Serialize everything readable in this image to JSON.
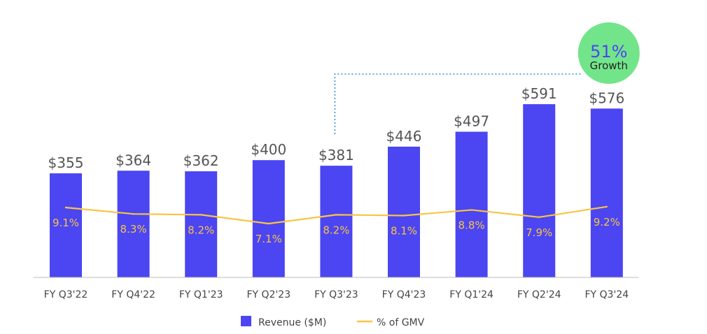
{
  "chart_data": {
    "type": "bar",
    "categories": [
      "FY Q3'22",
      "FY Q4'22",
      "FY Q1'23",
      "FY Q2'23",
      "FY Q3'23",
      "FY Q4'23",
      "FY Q1'24",
      "FY Q2'24",
      "FY Q3'24"
    ],
    "series": [
      {
        "name": "Revenue ($M)",
        "type": "bar",
        "values": [
          355,
          364,
          362,
          400,
          381,
          446,
          497,
          591,
          576
        ],
        "labels": [
          "$355",
          "$364",
          "$362",
          "$400",
          "$381",
          "$446",
          "$497",
          "$591",
          "$576"
        ],
        "color": "#4B45F2"
      },
      {
        "name": "% of GMV",
        "type": "line",
        "values": [
          9.1,
          8.3,
          8.2,
          7.1,
          8.2,
          8.1,
          8.8,
          7.9,
          9.2
        ],
        "labels": [
          "9.1%",
          "8.3%",
          "8.2%",
          "7.1%",
          "8.2%",
          "8.1%",
          "8.8%",
          "7.9%",
          "9.2%"
        ],
        "color": "#F9C446"
      }
    ],
    "annotation": {
      "value": "51%",
      "text": "Growth",
      "from_category": "FY Q3'23",
      "to_category": "FY Q3'24",
      "circle_color": "#72E58A",
      "value_color": "#4B45F2",
      "connector_color": "#3A8FD9"
    },
    "legend_position": "bottom",
    "grid": false
  }
}
